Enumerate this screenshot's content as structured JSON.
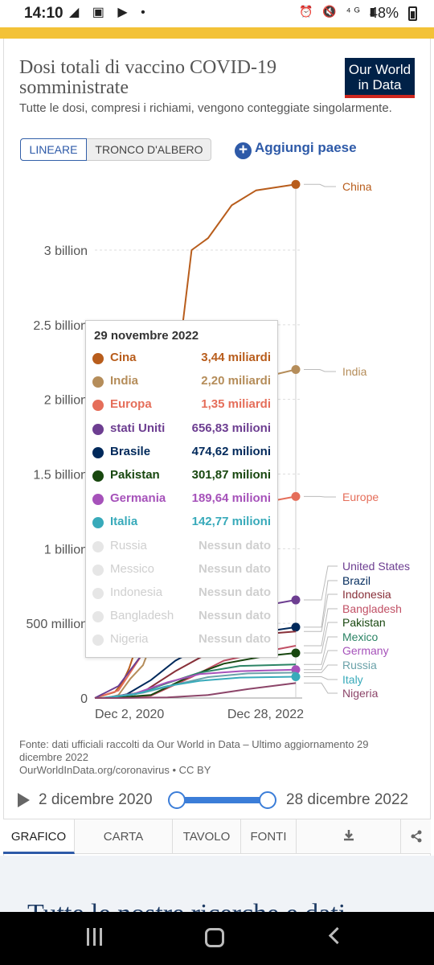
{
  "status_bar": {
    "time": "14:10",
    "left_icons": "◢ ▣ ▶ •",
    "right_icons": "⏰ 🔇 ⁴ᴳ ▮",
    "battery": "48%"
  },
  "header": {
    "title": "Dosi totali di vaccino COVID-19 somministrate",
    "subtitle": "Tutte le dosi, compresi i richiami, vengono conteggiate singolarmente.",
    "logo_line1": "Our World",
    "logo_line2": "in Data"
  },
  "controls": {
    "linear_label": "LINEARE",
    "log_label": "TRONCO D'ALBERO",
    "add_country_label": "Aggiungi paese"
  },
  "chart_data": {
    "type": "line",
    "title": "Dosi totali di vaccino COVID-19 somministrate",
    "x_tick_labels": [
      "Dec 2, 2020",
      "Dec 28, 2022"
    ],
    "y_ticks": [
      0,
      500000000,
      1000000000,
      1500000000,
      2000000000,
      2500000000,
      3000000000
    ],
    "y_tick_labels": [
      "0",
      "500 million",
      "1 billion",
      "1.5 billion",
      "2 billion",
      "2.5 billion",
      "3 billion"
    ],
    "ylim": [
      0,
      3500000000
    ],
    "x_range": [
      "2020-12-02",
      "2022-12-28"
    ],
    "grid": true,
    "legend_placement": "right",
    "series": [
      {
        "name": "China",
        "color": "#b85d1c",
        "x": [
          "2020-12-02",
          "2021-02-15",
          "2021-03-15",
          "2021-04-10",
          "2021-05-01",
          "2021-06-01",
          "2021-07-01",
          "2021-08-01",
          "2021-09-01",
          "2021-10-15",
          "2021-12-01",
          "2022-02-01",
          "2022-05-01",
          "2022-08-01",
          "2022-12-28"
        ],
        "values": [
          0,
          40000000,
          100000000,
          200000000,
          310000000,
          700000000,
          1350000000,
          1850000000,
          2150000000,
          2300000000,
          3000000000,
          3080000000,
          3300000000,
          3400000000,
          3440000000
        ]
      },
      {
        "name": "India",
        "color": "#b58d5a",
        "x": [
          "2020-12-02",
          "2021-01-16",
          "2021-03-01",
          "2021-04-15",
          "2021-06-01",
          "2021-08-01",
          "2021-10-01",
          "2021-12-01",
          "2022-03-01",
          "2022-06-01",
          "2022-09-01",
          "2022-12-28"
        ],
        "values": [
          0,
          0,
          20000000,
          130000000,
          220000000,
          500000000,
          880000000,
          1300000000,
          1800000000,
          1950000000,
          2150000000,
          2200000000
        ]
      },
      {
        "name": "Europe",
        "color": "#e56e5a",
        "x": [
          "2020-12-02",
          "2021-03-01",
          "2021-06-01",
          "2021-09-01",
          "2021-12-01",
          "2022-03-01",
          "2022-06-01",
          "2022-12-28"
        ],
        "values": [
          0,
          50000000,
          300000000,
          700000000,
          950000000,
          1200000000,
          1280000000,
          1350000000
        ]
      },
      {
        "name": "United States",
        "color": "#6d3e91",
        "x": [
          "2020-12-02",
          "2021-03-01",
          "2021-06-01",
          "2021-09-01",
          "2021-12-01",
          "2022-03-01",
          "2022-06-01",
          "2022-12-28"
        ],
        "values": [
          0,
          80000000,
          300000000,
          380000000,
          480000000,
          560000000,
          590000000,
          656830000
        ]
      },
      {
        "name": "Brazil",
        "color": "#00295b",
        "x": [
          "2020-12-02",
          "2021-01-17",
          "2021-04-01",
          "2021-07-01",
          "2021-10-01",
          "2022-01-01",
          "2022-06-01",
          "2022-12-28"
        ],
        "values": [
          0,
          0,
          25000000,
          120000000,
          250000000,
          340000000,
          420000000,
          474620000
        ]
      },
      {
        "name": "Indonesia",
        "color": "#883039",
        "x": [
          "2020-12-02",
          "2021-01-13",
          "2021-06-01",
          "2021-10-01",
          "2022-02-01",
          "2022-07-01",
          "2022-12-28"
        ],
        "values": [
          0,
          0,
          40000000,
          180000000,
          300000000,
          420000000,
          446000000
        ]
      },
      {
        "name": "Bangladesh",
        "color": "#c15065",
        "x": [
          "2020-12-02",
          "2021-02-07",
          "2021-07-01",
          "2021-12-01",
          "2022-04-01",
          "2022-09-01",
          "2022-12-28"
        ],
        "values": [
          0,
          0,
          15000000,
          140000000,
          250000000,
          310000000,
          350000000
        ]
      },
      {
        "name": "Pakistan",
        "color": "#18470f",
        "x": [
          "2020-12-02",
          "2021-02-02",
          "2021-07-01",
          "2021-12-01",
          "2022-04-01",
          "2022-09-01",
          "2022-12-28"
        ],
        "values": [
          0,
          0,
          20000000,
          150000000,
          230000000,
          280000000,
          301870000
        ]
      },
      {
        "name": "Mexico",
        "color": "#2c8465",
        "x": [
          "2020-12-02",
          "2021-01-01",
          "2021-05-01",
          "2021-09-01",
          "2022-01-01",
          "2022-06-01",
          "2022-12-28"
        ],
        "values": [
          0,
          1000000,
          25000000,
          100000000,
          170000000,
          215000000,
          225000000
        ]
      },
      {
        "name": "Germany",
        "color": "#a652ba",
        "x": [
          "2020-12-02",
          "2021-01-01",
          "2021-05-01",
          "2021-09-01",
          "2021-12-31",
          "2022-06-01",
          "2022-12-28"
        ],
        "values": [
          0,
          200000,
          30000000,
          105000000,
          160000000,
          180000000,
          189640000
        ]
      },
      {
        "name": "Russia",
        "color": "#6ba2a9",
        "x": [
          "2020-12-02",
          "2021-01-01",
          "2021-06-01",
          "2021-10-01",
          "2022-02-01",
          "2022-07-01",
          "2022-12-28"
        ],
        "values": [
          0,
          1000000,
          35000000,
          90000000,
          140000000,
          165000000,
          170000000
        ]
      },
      {
        "name": "Italy",
        "color": "#38aaba",
        "x": [
          "2020-12-02",
          "2021-01-01",
          "2021-05-01",
          "2021-09-01",
          "2022-01-01",
          "2022-06-01",
          "2022-12-28"
        ],
        "values": [
          0,
          100000,
          25000000,
          80000000,
          115000000,
          137000000,
          142770000
        ]
      },
      {
        "name": "Nigeria",
        "color": "#8c4569",
        "x": [
          "2020-12-02",
          "2021-03-05",
          "2021-09-01",
          "2022-02-01",
          "2022-07-01",
          "2022-12-28"
        ],
        "values": [
          0,
          0,
          4000000,
          20000000,
          60000000,
          100000000
        ]
      }
    ],
    "right_labels": [
      {
        "name": "China",
        "color": "#b85d1c"
      },
      {
        "name": "India",
        "color": "#b58d5a"
      },
      {
        "name": "Europe",
        "color": "#e56e5a"
      },
      {
        "name": "United States",
        "color": "#6d3e91"
      },
      {
        "name": "Brazil",
        "color": "#00295b"
      },
      {
        "name": "Indonesia",
        "color": "#883039"
      },
      {
        "name": "Bangladesh",
        "color": "#c15065"
      },
      {
        "name": "Pakistan",
        "color": "#18470f"
      },
      {
        "name": "Mexico",
        "color": "#2c8465"
      },
      {
        "name": "Germany",
        "color": "#a652ba"
      },
      {
        "name": "Russia",
        "color": "#6ba2a9"
      },
      {
        "name": "Italy",
        "color": "#38aaba"
      },
      {
        "name": "Nigeria",
        "color": "#8c4569"
      }
    ]
  },
  "tooltip": {
    "date": "29 novembre 2022",
    "rows": [
      {
        "name": "Cina",
        "value": "3,44 miliardi",
        "color": "#b85d1c",
        "faded": false
      },
      {
        "name": "India",
        "value": "2,20 miliardi",
        "color": "#b58d5a",
        "faded": false
      },
      {
        "name": "Europa",
        "value": "1,35 miliardi",
        "color": "#e56e5a",
        "faded": false
      },
      {
        "name": "stati Uniti",
        "value": "656,83 milioni",
        "color": "#6d3e91",
        "faded": false
      },
      {
        "name": "Brasile",
        "value": "474,62 milioni",
        "color": "#00295b",
        "faded": false
      },
      {
        "name": "Pakistan",
        "value": "301,87 milioni",
        "color": "#18470f",
        "faded": false
      },
      {
        "name": "Germania",
        "value": "189,64 milioni",
        "color": "#a652ba",
        "faded": false
      },
      {
        "name": "Italia",
        "value": "142,77 milioni",
        "color": "#38aaba",
        "faded": false
      },
      {
        "name": "Russia",
        "value": "Nessun dato",
        "color": "#dddddd",
        "faded": true
      },
      {
        "name": "Messico",
        "value": "Nessun dato",
        "color": "#dddddd",
        "faded": true
      },
      {
        "name": "Indonesia",
        "value": "Nessun dato",
        "color": "#dddddd",
        "faded": true
      },
      {
        "name": "Bangladesh",
        "value": "Nessun dato",
        "color": "#dddddd",
        "faded": true
      },
      {
        "name": "Nigeria",
        "value": "Nessun dato",
        "color": "#dddddd",
        "faded": true
      }
    ]
  },
  "source": {
    "line1": "Fonte: dati ufficiali raccolti da Our World in Data – Ultimo aggiornamento 29 dicembre 2022",
    "line2": "OurWorldInData.org/coronavirus • CC BY"
  },
  "timeline": {
    "start_label": "2 dicembre 2020",
    "end_label": "28 dicembre 2022"
  },
  "tabs": {
    "chart": "GRAFICO",
    "map": "CARTA",
    "table": "TAVOLO",
    "sources": "FONTI"
  },
  "below": {
    "text": "Tutte le nostre ricerche e dati"
  }
}
